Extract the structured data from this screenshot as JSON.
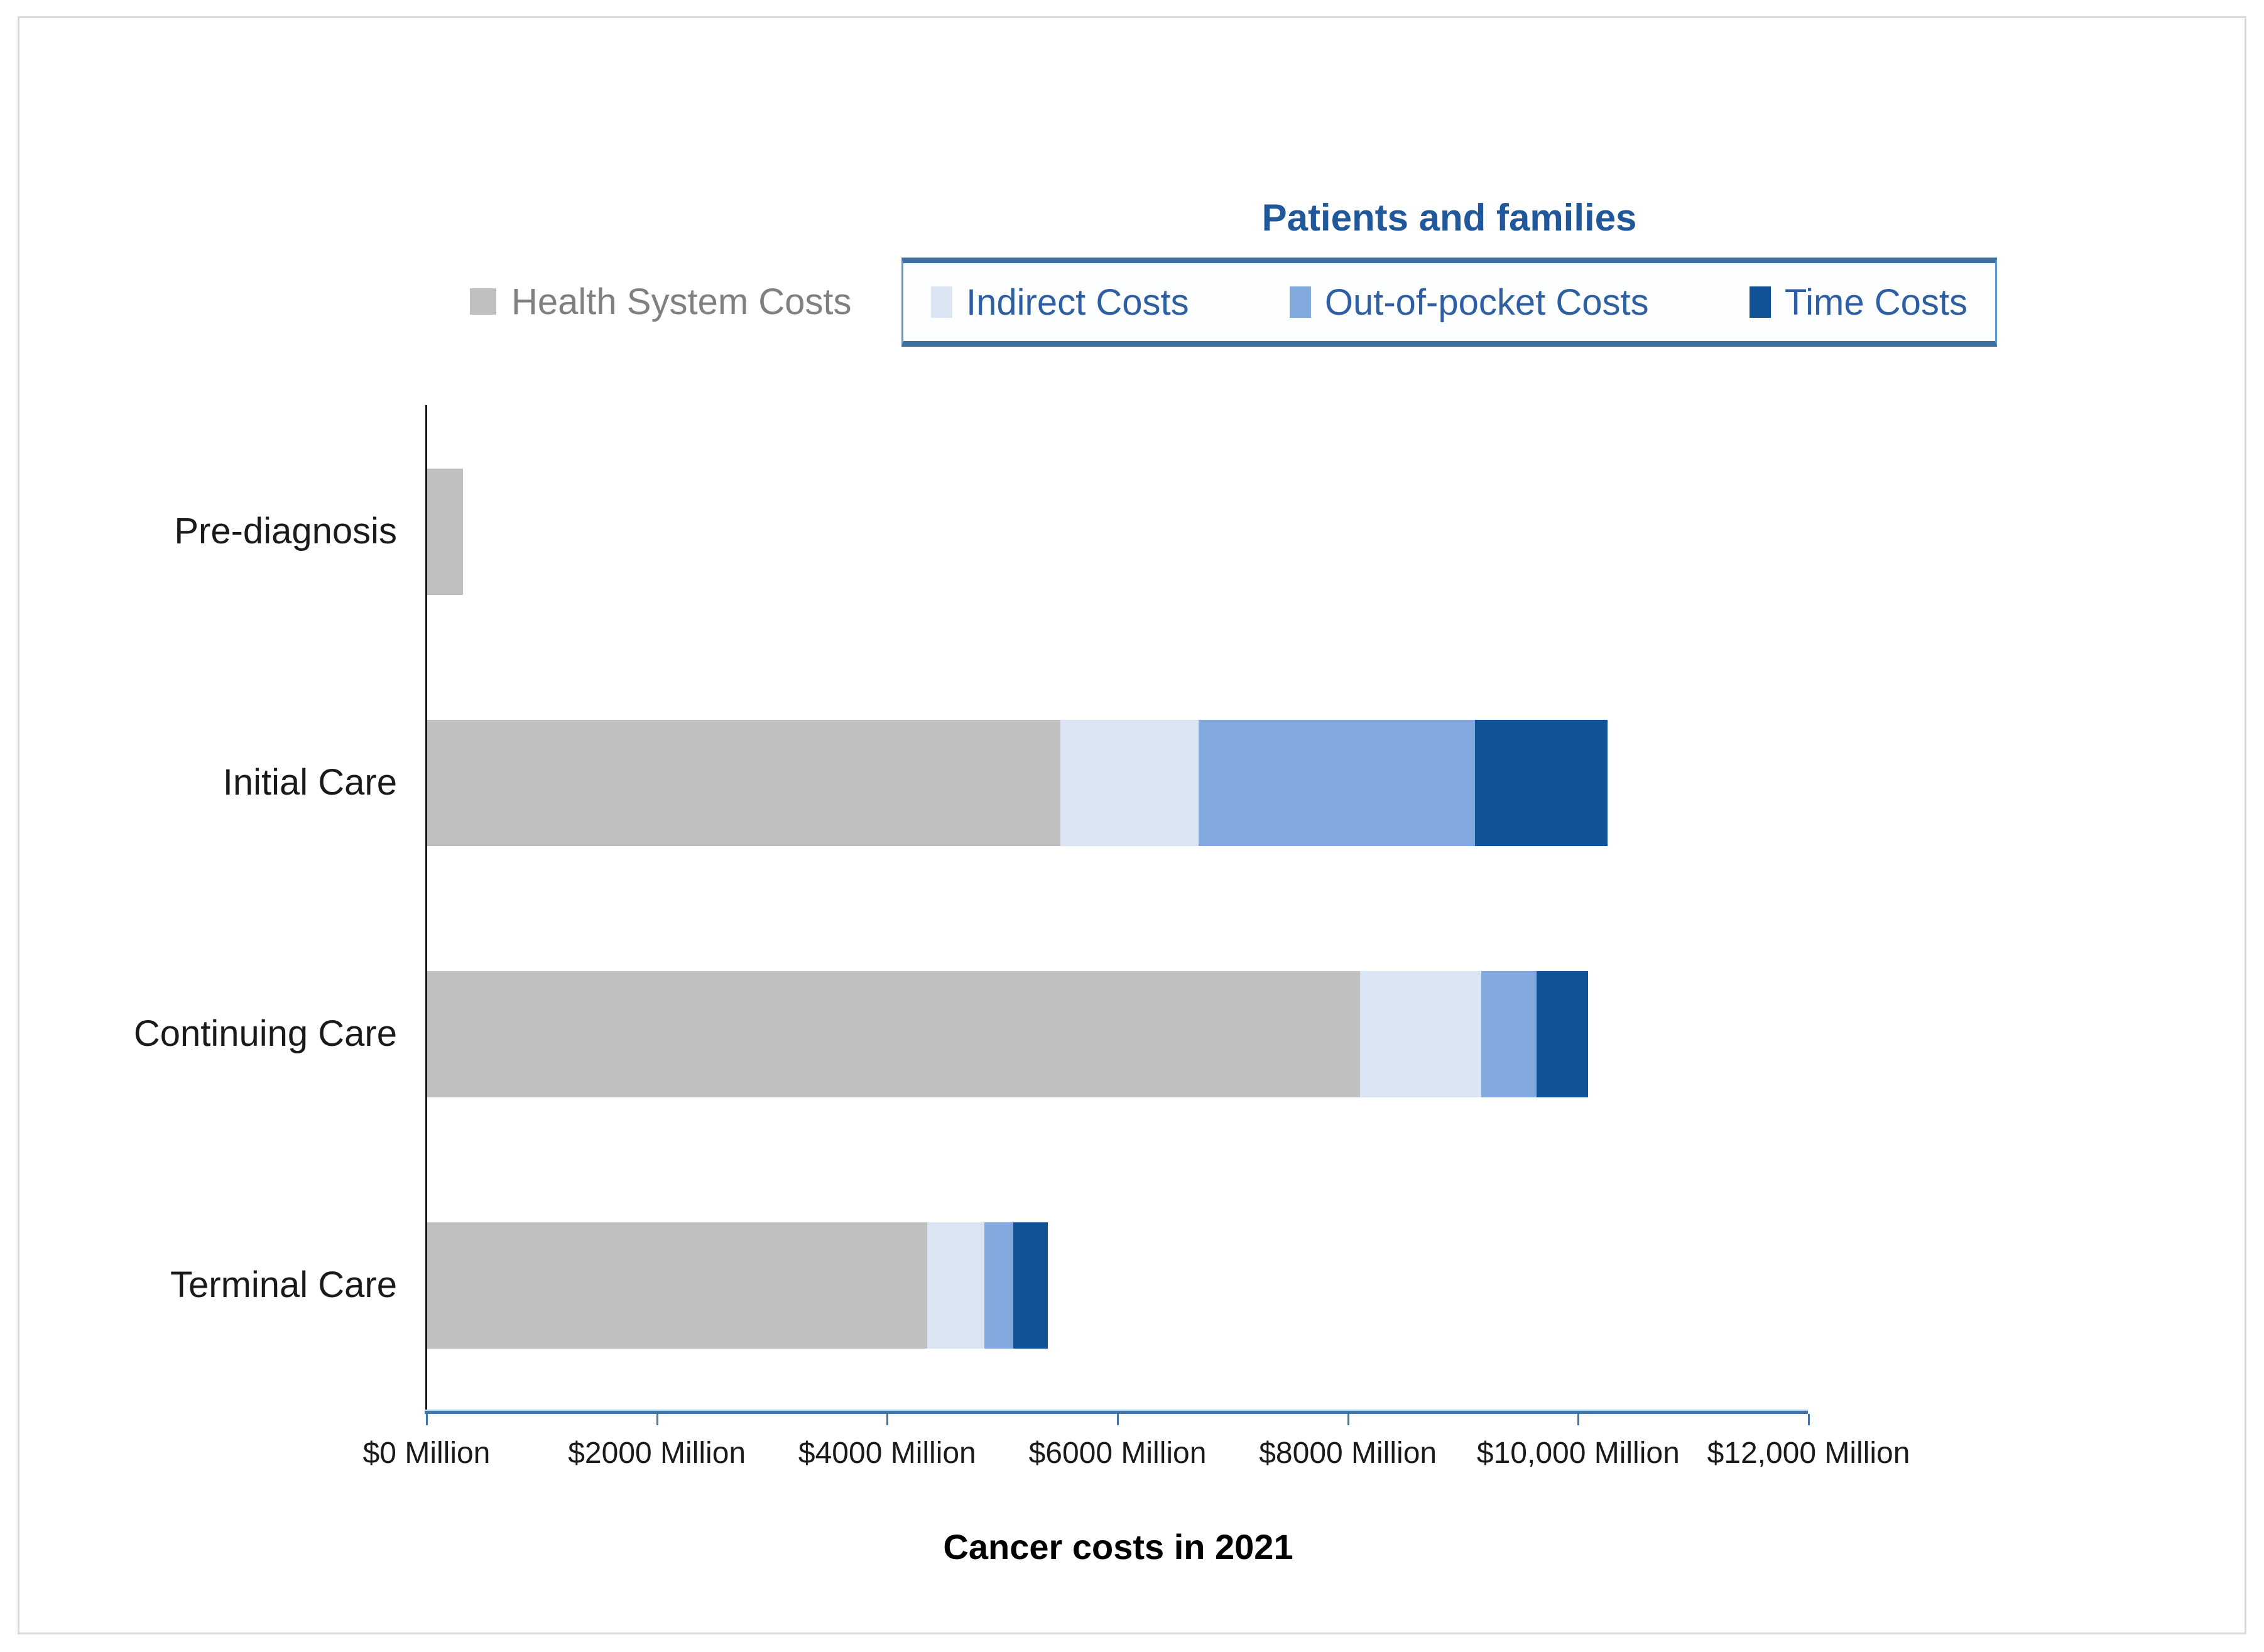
{
  "chart_data": {
    "type": "bar",
    "orientation": "horizontal",
    "stacked": true,
    "title": "Cancer costs in 2021",
    "legend": {
      "group_title": "Patients and families",
      "outside_item": "Health System Costs",
      "box_items": [
        "Indirect Costs",
        "Out-of-pocket Costs",
        "Time Costs"
      ],
      "position": "top"
    },
    "categories": [
      "Pre-diagnosis",
      "Initial Care",
      "Continuing Care",
      "Terminal Care"
    ],
    "series": [
      {
        "name": "Health System Costs",
        "color": "#c0c0c0",
        "values": [
          310,
          5500,
          8100,
          4340
        ]
      },
      {
        "name": "Indirect Costs",
        "color": "#dce5f3",
        "values": [
          0,
          1200,
          1050,
          500
        ]
      },
      {
        "name": "Out-of-pocket Costs",
        "color": "#82a9de",
        "values": [
          0,
          2400,
          480,
          250
        ]
      },
      {
        "name": "Time Costs",
        "color": "#115196",
        "values": [
          0,
          1150,
          450,
          300
        ]
      }
    ],
    "x_axis": {
      "max": 12000,
      "unit": "$ Million",
      "ticks": [
        {
          "value": 0,
          "label": "$0 Million"
        },
        {
          "value": 2000,
          "label": "$2000 Million"
        },
        {
          "value": 4000,
          "label": "$4000 Million"
        },
        {
          "value": 6000,
          "label": "$6000 Million"
        },
        {
          "value": 8000,
          "label": "$8000 Million"
        },
        {
          "value": 10000,
          "label": "$10,000 Million"
        },
        {
          "value": 12000,
          "label": "$12,000 Million"
        }
      ]
    },
    "colors": {
      "legend_text_blue": "#2e5fa3",
      "legend_title_blue": "#21589b",
      "health_system_text": "#7f7f7f",
      "axis_line_blue": "#4176a6",
      "axis_text": "#1a1a1a",
      "frame_border": "#d8d8d8"
    },
    "grid": false
  }
}
